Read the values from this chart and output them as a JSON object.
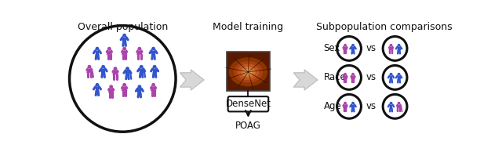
{
  "title_left": "Overall population",
  "title_middle": "Model training",
  "title_right": "Subpopulation comparisons",
  "model_label": "DenseNet",
  "output_label": "POAG",
  "blue_color": "#3355CC",
  "pink_color": "#AA44AA",
  "arrow_facecolor": "#D0D0D0",
  "arrow_edgecolor": "#AAAAAA",
  "circle_edge_color": "#111111",
  "bg_color": "#ffffff",
  "text_color": "#111111",
  "population_figures": [
    [
      100,
      170,
      "blue",
      false,
      false
    ],
    [
      55,
      148,
      "blue",
      false,
      false
    ],
    [
      75,
      148,
      "pink",
      true,
      false
    ],
    [
      100,
      148,
      "pink",
      true,
      false
    ],
    [
      125,
      148,
      "pink",
      true,
      false
    ],
    [
      148,
      148,
      "blue",
      false,
      false
    ],
    [
      42,
      118,
      "pink",
      true,
      true
    ],
    [
      65,
      118,
      "blue",
      false,
      false
    ],
    [
      85,
      115,
      "pink",
      true,
      false
    ],
    [
      105,
      115,
      "blue",
      false,
      true
    ],
    [
      128,
      118,
      "blue",
      false,
      true
    ],
    [
      150,
      118,
      "blue",
      false,
      false
    ],
    [
      55,
      88,
      "blue",
      false,
      false
    ],
    [
      78,
      85,
      "pink",
      true,
      false
    ],
    [
      100,
      88,
      "pink",
      true,
      false
    ],
    [
      125,
      85,
      "blue",
      false,
      false
    ],
    [
      148,
      88,
      "pink",
      true,
      false
    ]
  ]
}
